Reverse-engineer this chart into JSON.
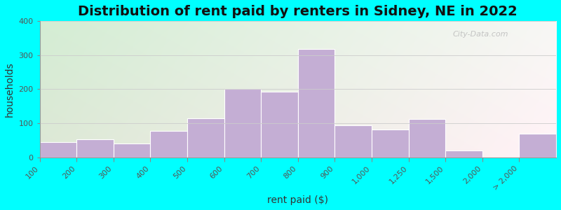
{
  "title": "Distribution of rent paid by renters in Sidney, NE in 2022",
  "xlabel": "rent paid ($)",
  "ylabel": "households",
  "bar_labels": [
    "100",
    "200",
    "300",
    "400",
    "500",
    "600",
    "700",
    "800",
    "900",
    "1,000",
    "1,250",
    "1,500",
    "2,000",
    "> 2,000"
  ],
  "bar_values": [
    45,
    52,
    40,
    78,
    115,
    200,
    193,
    318,
    93,
    82,
    112,
    20,
    0,
    70
  ],
  "bar_color": "#c4aed4",
  "bar_edge_color": "#ffffff",
  "ylim": [
    0,
    400
  ],
  "yticks": [
    0,
    100,
    200,
    300,
    400
  ],
  "background_outer": "#00ffff",
  "title_fontsize": 14,
  "axis_label_fontsize": 10,
  "tick_fontsize": 8,
  "watermark_text": "City-Data.com"
}
